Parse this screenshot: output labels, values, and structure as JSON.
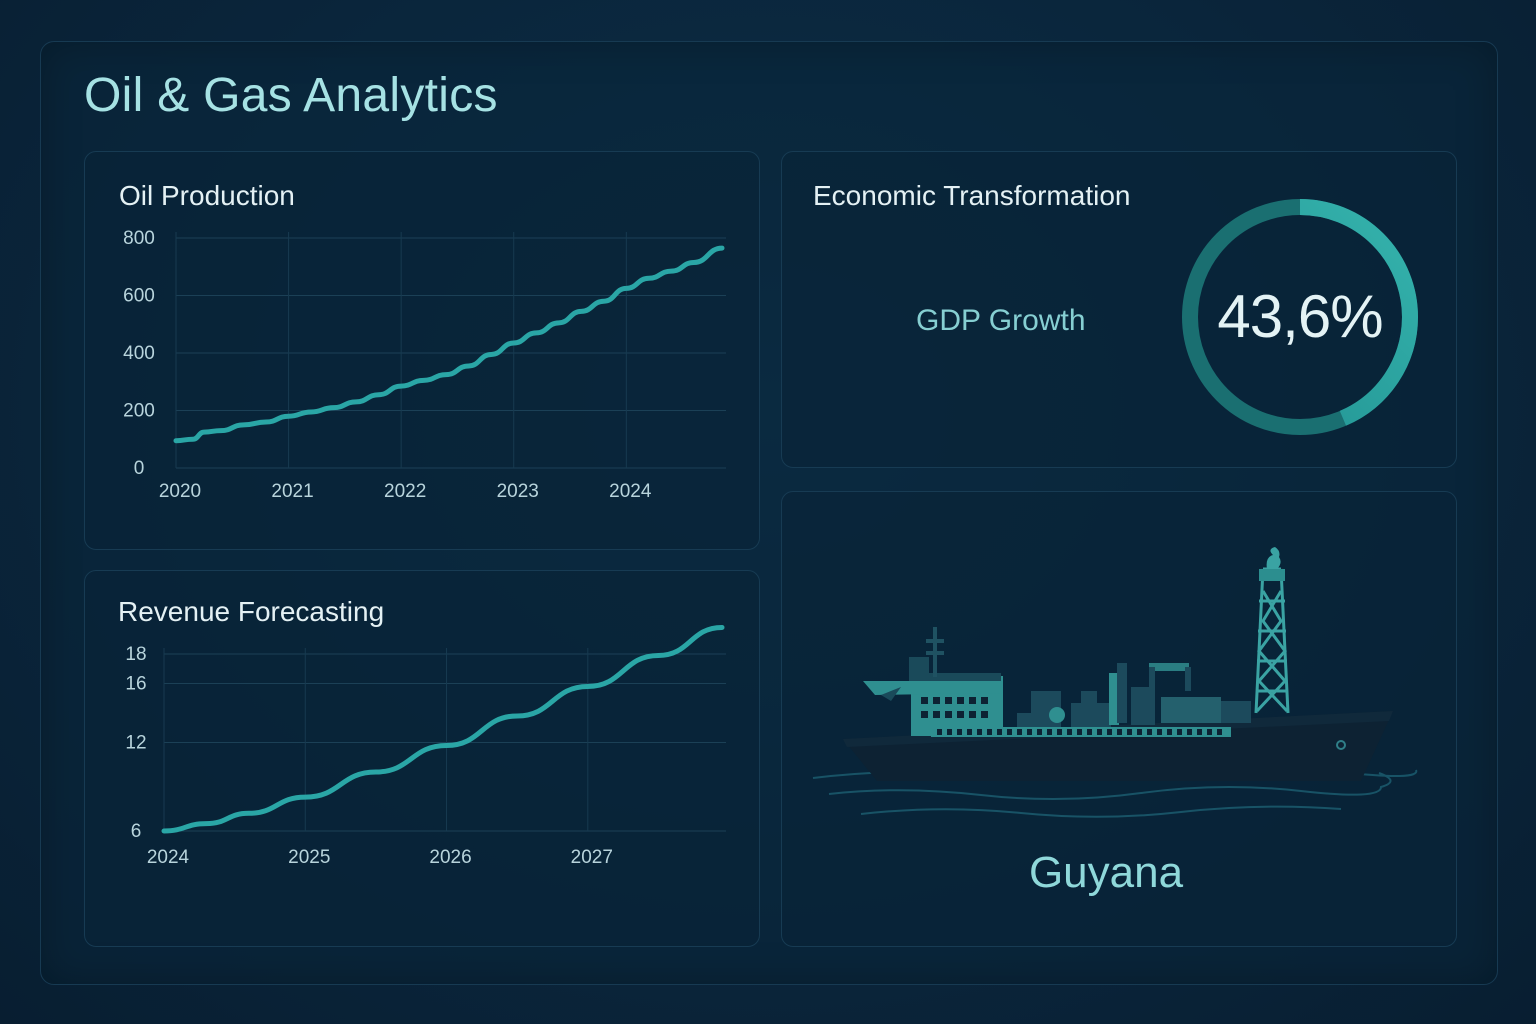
{
  "dashboard": {
    "title": "Oil & Gas Analytics"
  },
  "oil_production": {
    "title": "Oil Production"
  },
  "revenue_forecasting": {
    "title": "Revenue Forecasting"
  },
  "economic": {
    "title": "Economic Transformation",
    "metric_label": "GDP Growth",
    "metric_value": "43,6%",
    "metric_percent": 43.6
  },
  "region": {
    "name": "Guyana"
  },
  "colors": {
    "accent": "#2aa6a6",
    "title": "#a6e2e4",
    "background": "#0a253b"
  },
  "chart_data": [
    {
      "type": "line",
      "title": "Oil Production",
      "xlabel": "",
      "ylabel": "",
      "ylim": [
        0,
        800
      ],
      "xlim": [
        2020,
        2024.85
      ],
      "yticks": [
        0,
        200,
        400,
        600,
        800
      ],
      "xticks": [
        "2020",
        "2021",
        "2022",
        "2023",
        "2024"
      ],
      "xtick_values": [
        2020,
        2021,
        2022,
        2023,
        2024
      ],
      "grid": true,
      "series": [
        {
          "name": "Oil Production",
          "x": [
            2020,
            2020.15,
            2020.25,
            2020.4,
            2020.6,
            2020.8,
            2021,
            2021.2,
            2021.4,
            2021.6,
            2021.8,
            2022,
            2022.2,
            2022.4,
            2022.6,
            2022.8,
            2023,
            2023.2,
            2023.4,
            2023.6,
            2023.8,
            2024,
            2024.2,
            2024.4,
            2024.6,
            2024.85
          ],
          "y": [
            95,
            100,
            125,
            130,
            150,
            160,
            180,
            195,
            210,
            230,
            255,
            285,
            305,
            325,
            355,
            395,
            435,
            470,
            505,
            545,
            580,
            625,
            660,
            685,
            715,
            765
          ]
        }
      ]
    },
    {
      "type": "line",
      "title": "Revenue Forecasting",
      "xlabel": "",
      "ylabel": "",
      "ylim": [
        6,
        18
      ],
      "xlim": [
        2024,
        2027.95
      ],
      "yticks": [
        "6",
        "12",
        "16",
        "18"
      ],
      "xticks": [
        "2024",
        "2025",
        "2026",
        "2027"
      ],
      "xtick_values": [
        2024,
        2025,
        2026,
        2027
      ],
      "grid": true,
      "series": [
        {
          "name": "Revenue",
          "x": [
            2024,
            2024.3,
            2024.6,
            2025,
            2025.5,
            2026,
            2026.5,
            2027,
            2027.5,
            2027.95
          ],
          "y": [
            6.0,
            6.5,
            7.2,
            8.3,
            10.0,
            11.8,
            13.8,
            15.8,
            17.9,
            19.8
          ]
        }
      ]
    }
  ]
}
